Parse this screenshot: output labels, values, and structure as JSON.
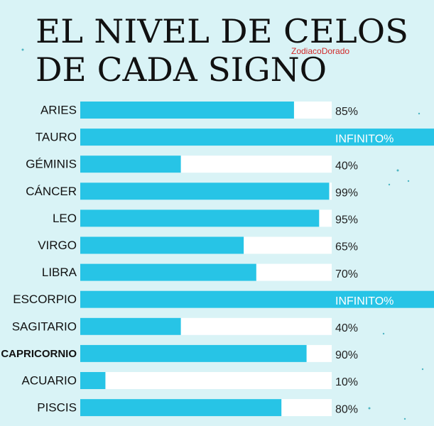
{
  "chart_data": {
    "type": "bar",
    "orientation": "horizontal",
    "title": [
      "EL NIVEL DE CELOS",
      "DE CADA SIGNO"
    ],
    "watermark": "ZodiacoDorado",
    "categories": [
      "ARIES",
      "TAURO",
      "GÉMINIS",
      "CÁNCER",
      "LEO",
      "VIRGO",
      "LIBRA",
      "ESCORPIO",
      "SAGITARIO",
      "CAPRICORNIO",
      "ACUARIO",
      "PISCIS"
    ],
    "values": [
      85,
      null,
      40,
      99,
      95,
      65,
      70,
      null,
      40,
      90,
      10,
      80
    ],
    "value_labels": [
      "85%",
      "INFINITO%",
      "40%",
      "99%",
      "95%",
      "65%",
      "70%",
      "INFINITO%",
      "40%",
      "90%",
      "10%",
      "80%"
    ],
    "color": "#27c4e6",
    "track_color": "#ffffff",
    "xlim": [
      0,
      100
    ]
  }
}
